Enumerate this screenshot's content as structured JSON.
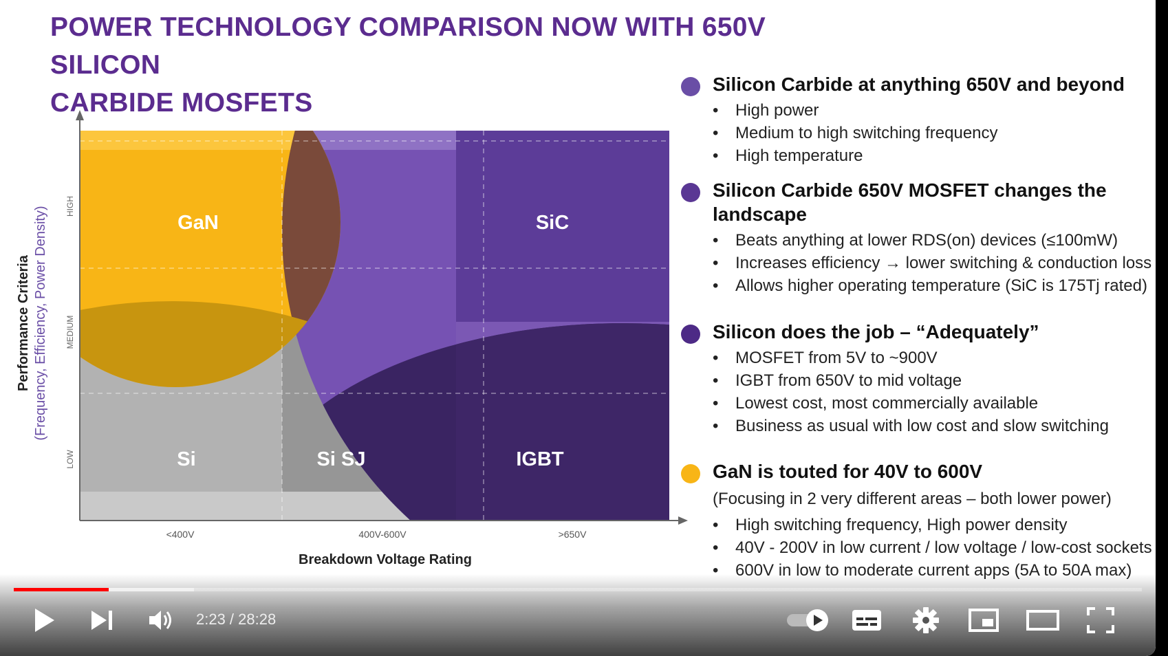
{
  "slide": {
    "title_line1": "POWER TECHNOLOGY COMPARISON NOW WITH 650V SILICON",
    "title_line2": "CARBIDE MOSFETS",
    "chart_data": {
      "type": "region-map",
      "xlabel": "Breakdown Voltage Rating",
      "x_categories": [
        "<400V",
        "400V-600V",
        ">650V"
      ],
      "ylabel": "Performance Criteria",
      "ylabel_sub": "(Frequency, Efficiency, Power Density)",
      "y_levels": [
        "LOW",
        "MEDIUM",
        "HIGH"
      ],
      "regions": [
        {
          "label": "GaN",
          "x_span": "<400V",
          "y_span": "MEDIUM-HIGH",
          "color": "#f8b516"
        },
        {
          "label": "SiC",
          "x_span": ">650V",
          "y_span": "HIGH",
          "color": "#5c3c98"
        },
        {
          "label": "Si",
          "x_span": "<400V",
          "y_span": "LOW",
          "color": "#b0b0b0"
        },
        {
          "label": "Si SJ",
          "x_span": "400V-600V",
          "y_span": "LOW",
          "color": "#8f8f8f"
        },
        {
          "label": "IGBT",
          "x_span": ">650V",
          "y_span": "LOW",
          "color": "#3a2462"
        }
      ]
    },
    "sections": [
      {
        "title": "Silicon Carbide at anything 650V and beyond",
        "dot_color": "#6a4ea6",
        "bullets": [
          "High power",
          "Medium to high switching frequency",
          "High temperature"
        ]
      },
      {
        "title": "Silicon Carbide 650V MOSFET changes the",
        "title2": "landscape",
        "dot_color": "#5a3794",
        "bullets": [
          "Beats anything at lower RDS(on) devices (≤100mW)",
          "Increases efficiency → lower switching & conduction loss",
          "Allows higher operating temperature (SiC is 175Tj rated)"
        ]
      },
      {
        "title": "Silicon does the job – “Adequately”",
        "dot_color": "#4d2a86",
        "bullets": [
          "MOSFET from 5V to ~900V",
          "IGBT from 650V to mid voltage",
          "Lowest cost, most commercially available",
          "Business as usual with low cost and slow switching"
        ]
      },
      {
        "title": "GaN is touted for 40V to 600V",
        "dot_color": "#f8b516",
        "note": "(Focusing in 2 very different areas – both lower power)",
        "bullets": [
          "High switching frequency, High power density",
          "40V - 200V in low current / low voltage / low-cost sockets",
          "600V in low to moderate current apps (5A to 50A max)"
        ]
      }
    ]
  },
  "player": {
    "time_current": "2:23",
    "time_total": "28:28",
    "time_display": "2:23 / 28:28",
    "progress_played": 0.084,
    "progress_buffered": 0.16,
    "progress_color": "#ff0000",
    "icons": [
      "play-icon",
      "next-icon",
      "volume-icon",
      "autoplay-toggle-icon",
      "subtitles-icon",
      "settings-gear-icon",
      "miniplayer-icon",
      "theater-mode-icon",
      "fullscreen-icon"
    ]
  }
}
